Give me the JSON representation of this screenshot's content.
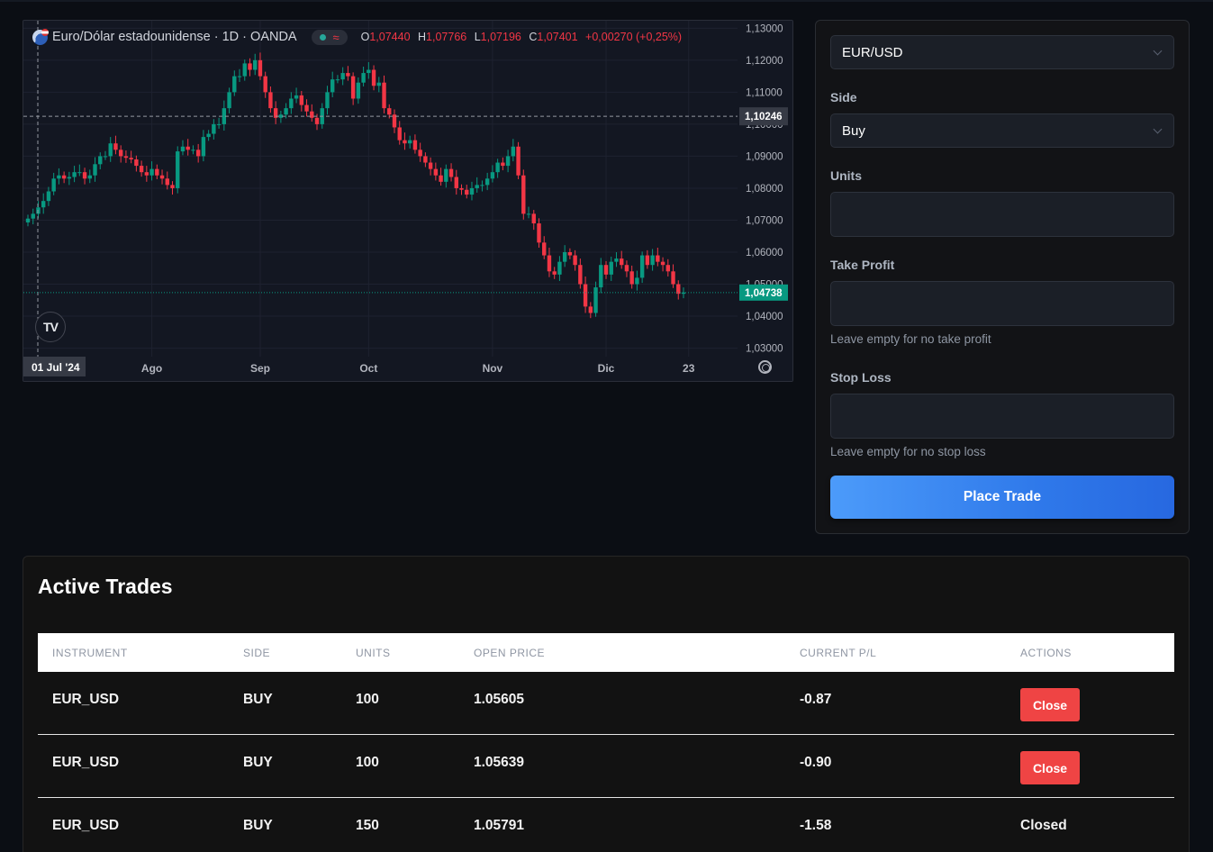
{
  "chart": {
    "symbol": "Euro/Dólar estadounidense · 1D · OANDA",
    "ohlc": {
      "o_label": "O",
      "o": "1,07440",
      "h_label": "H",
      "h": "1,07766",
      "l_label": "L",
      "l": "1,07196",
      "c_label": "C",
      "c": "1,07401",
      "change": "+0,00270 (+0,25%)"
    },
    "crosshair_price": "1,10246",
    "last_price": "1,04738",
    "crosshair_date": "01 Jul '24",
    "colors": {
      "up": "#089981",
      "down": "#f23645",
      "background": "#131722"
    },
    "icons": {
      "logo": "tradingview-logo-icon",
      "settings": "settings-gear-icon"
    }
  },
  "chart_data": {
    "type": "candlestick",
    "yticks": [
      "1,13000",
      "1,12000",
      "1,11000",
      "1,10000",
      "1,09000",
      "1,08000",
      "1,07000",
      "1,06000",
      "1,05000",
      "1,04000",
      "1,03000"
    ],
    "ytick_values": [
      1.13,
      1.12,
      1.11,
      1.1,
      1.09,
      1.08,
      1.07,
      1.06,
      1.05,
      1.04,
      1.03
    ],
    "xticks": [
      "Ago",
      "Sep",
      "Oct",
      "Nov",
      "Dic",
      "23"
    ],
    "ylim": [
      1.0265,
      1.1315
    ],
    "close": [
      1.0705,
      1.072,
      1.074,
      1.076,
      1.079,
      1.083,
      1.084,
      1.083,
      1.0835,
      1.085,
      1.085,
      1.083,
      1.084,
      1.0875,
      1.09,
      1.09,
      1.094,
      1.092,
      1.09,
      1.0895,
      1.089,
      1.087,
      1.085,
      1.084,
      1.086,
      1.084,
      1.083,
      1.081,
      1.08,
      1.0915,
      1.093,
      1.092,
      1.092,
      1.09,
      1.096,
      1.097,
      1.1,
      1.1,
      1.105,
      1.11,
      1.115,
      1.115,
      1.119,
      1.117,
      1.12,
      1.115,
      1.11,
      1.105,
      1.102,
      1.103,
      1.105,
      1.108,
      1.109,
      1.106,
      1.104,
      1.102,
      1.1,
      1.105,
      1.11,
      1.114,
      1.114,
      1.116,
      1.115,
      1.108,
      1.113,
      1.116,
      1.117,
      1.112,
      1.113,
      1.105,
      1.103,
      1.099,
      1.095,
      1.094,
      1.095,
      1.092,
      1.09,
      1.088,
      1.086,
      1.084,
      1.082,
      1.086,
      1.0835,
      1.08,
      1.0795,
      1.078,
      1.08,
      1.081,
      1.081,
      1.083,
      1.085,
      1.088,
      1.087,
      1.09,
      1.093,
      1.084,
      1.072,
      1.072,
      1.069,
      1.063,
      1.059,
      1.054,
      1.053,
      1.057,
      1.06,
      1.059,
      1.056,
      1.05,
      1.043,
      1.041,
      1.049,
      1.056,
      1.053,
      1.057,
      1.058,
      1.056,
      1.054,
      1.05,
      1.052,
      1.059,
      1.056,
      1.059,
      1.057,
      1.056,
      1.054,
      1.05,
      1.047,
      1.0474
    ]
  },
  "order_form": {
    "instrument_value": "EUR/USD",
    "side_label": "Side",
    "side_value": "Buy",
    "units_label": "Units",
    "take_profit_label": "Take Profit",
    "take_profit_hint": "Leave empty for no take profit",
    "stop_loss_label": "Stop Loss",
    "stop_loss_hint": "Leave empty for no stop loss",
    "submit_label": "Place Trade",
    "icons": {
      "dropdown": "chevron-down-icon"
    }
  },
  "trades": {
    "title": "Active Trades",
    "columns": [
      "INSTRUMENT",
      "SIDE",
      "UNITS",
      "OPEN PRICE",
      "CURRENT P/L",
      "ACTIONS"
    ],
    "rows": [
      {
        "instrument": "EUR_USD",
        "side": "BUY",
        "units": "100",
        "open_price": "1.05605",
        "pl": "-0.87",
        "action": "Close",
        "action_type": "button"
      },
      {
        "instrument": "EUR_USD",
        "side": "BUY",
        "units": "100",
        "open_price": "1.05639",
        "pl": "-0.90",
        "action": "Close",
        "action_type": "button"
      },
      {
        "instrument": "EUR_USD",
        "side": "BUY",
        "units": "150",
        "open_price": "1.05791",
        "pl": "-1.58",
        "action": "Closed",
        "action_type": "text"
      }
    ]
  }
}
